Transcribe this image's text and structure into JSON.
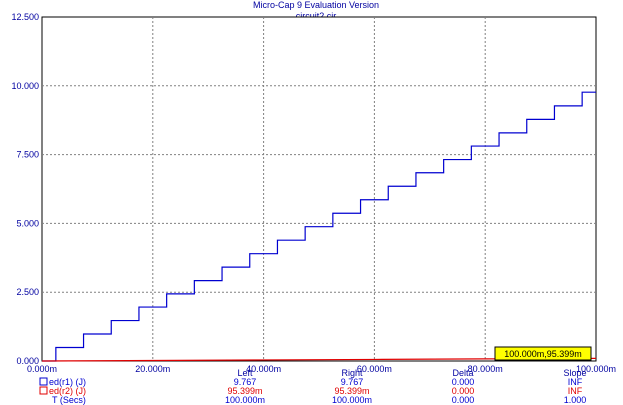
{
  "chart_data": {
    "type": "line",
    "title": "Micro-Cap 9 Evaluation Version",
    "subtitle": "circuit2.cir",
    "x_ticks": [
      "0.000m",
      "20.000m",
      "40.000m",
      "60.000m",
      "80.000m",
      "100.000m"
    ],
    "y_ticks": [
      "0.000",
      "2.500",
      "5.000",
      "7.500",
      "10.000",
      "12.500"
    ],
    "xlim": [
      0,
      100
    ],
    "ylim": [
      0,
      12.5
    ],
    "grid": true,
    "series": [
      {
        "name": "ed(r1) (J)",
        "color": "#0000d0",
        "step": true,
        "x": [
          0,
          2.5,
          2.5,
          7.5,
          7.5,
          12.5,
          12.5,
          17.5,
          17.5,
          22.5,
          22.5,
          27.5,
          27.5,
          32.5,
          32.5,
          37.5,
          37.5,
          42.5,
          42.5,
          47.5,
          47.5,
          52.5,
          52.5,
          57.5,
          57.5,
          62.5,
          62.5,
          67.5,
          67.5,
          72.5,
          72.5,
          77.5,
          77.5,
          82.5,
          82.5,
          87.5,
          87.5,
          92.5,
          92.5,
          97.5,
          97.5,
          100
        ],
        "y": [
          0,
          0,
          0.49,
          0.49,
          0.98,
          0.98,
          1.47,
          1.47,
          1.96,
          1.96,
          2.44,
          2.44,
          2.92,
          2.92,
          3.41,
          3.41,
          3.9,
          3.9,
          4.39,
          4.39,
          4.88,
          4.88,
          5.37,
          5.37,
          5.86,
          5.86,
          6.35,
          6.35,
          6.84,
          6.84,
          7.32,
          7.32,
          7.81,
          7.81,
          8.29,
          8.29,
          8.78,
          8.78,
          9.27,
          9.27,
          9.767,
          9.767
        ]
      },
      {
        "name": "ed(r2) (J)",
        "color": "#e00000",
        "x": [
          0,
          20,
          40,
          60,
          80,
          100
        ],
        "y": [
          0,
          0.019,
          0.038,
          0.057,
          0.076,
          0.0954
        ]
      }
    ],
    "annotation": "100.000m,95.399m",
    "readout": {
      "headers": [
        "Left",
        "Right",
        "Delta",
        "Slope"
      ],
      "rows": [
        {
          "label": "ed(r1) (J)",
          "color": "#0000d0",
          "values": [
            "9.767",
            "9.767",
            "0.000",
            "INF"
          ]
        },
        {
          "label": "ed(r2) (J)",
          "color": "#e00000",
          "values": [
            "95.399m",
            "95.399m",
            "0.000",
            "INF"
          ]
        },
        {
          "label": "T (Secs)",
          "color": "#0000d0",
          "values": [
            "100.000m",
            "100.000m",
            "0.000",
            "1.000"
          ]
        }
      ]
    }
  }
}
